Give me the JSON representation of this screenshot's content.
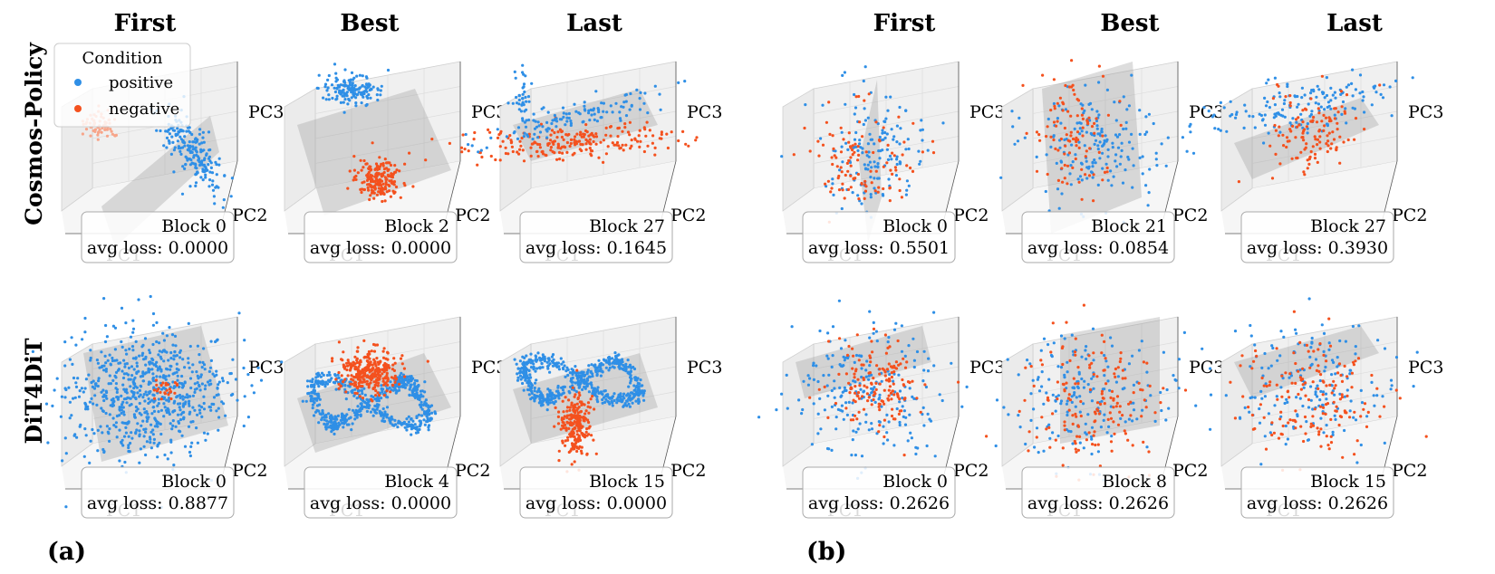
{
  "colors": {
    "positive": "#2f8fe6",
    "negative": "#f4511e",
    "plane": "#9e9e9e",
    "pane": "#f0f0f0"
  },
  "legend": {
    "title": "Condition",
    "items": [
      "positive",
      "negative"
    ],
    "placement": "upper-left of first subplot"
  },
  "column_titles": [
    "First",
    "Best",
    "Last",
    "First",
    "Best",
    "Last"
  ],
  "row_labels": [
    "Cosmos-Policy",
    "DiT4DiT"
  ],
  "panel_labels": [
    "(a)",
    "(b)"
  ],
  "chart_data": {
    "type": "scatter",
    "projection": "3d",
    "axes": {
      "xlabel": "PC1",
      "ylabel": "PC2",
      "zlabel": "PC3"
    },
    "series_names": [
      "positive",
      "negative"
    ],
    "subplots": [
      {
        "panel": "(a)",
        "row": "Cosmos-Policy",
        "column": "First",
        "block_text": "Block 0",
        "loss_text": "avg loss: 0.0000",
        "block": 0,
        "avg_loss": 0.0
      },
      {
        "panel": "(a)",
        "row": "Cosmos-Policy",
        "column": "Best",
        "block_text": "Block 2",
        "loss_text": "avg loss: 0.0000",
        "block": 2,
        "avg_loss": 0.0
      },
      {
        "panel": "(a)",
        "row": "Cosmos-Policy",
        "column": "Last",
        "block_text": "Block 27",
        "loss_text": "avg loss: 0.1645",
        "block": 27,
        "avg_loss": 0.1645
      },
      {
        "panel": "(b)",
        "row": "Cosmos-Policy",
        "column": "First",
        "block_text": "Block 0",
        "loss_text": "avg loss: 0.5501",
        "block": 0,
        "avg_loss": 0.5501
      },
      {
        "panel": "(b)",
        "row": "Cosmos-Policy",
        "column": "Best",
        "block_text": "Block 21",
        "loss_text": "avg loss: 0.0854",
        "block": 21,
        "avg_loss": 0.0854
      },
      {
        "panel": "(b)",
        "row": "Cosmos-Policy",
        "column": "Last",
        "block_text": "Block 27",
        "loss_text": "avg loss: 0.3930",
        "block": 27,
        "avg_loss": 0.393
      },
      {
        "panel": "(a)",
        "row": "DiT4DiT",
        "column": "First",
        "block_text": "Block 0",
        "loss_text": "avg loss: 0.8877",
        "block": 0,
        "avg_loss": 0.8877
      },
      {
        "panel": "(a)",
        "row": "DiT4DiT",
        "column": "Best",
        "block_text": "Block 4",
        "loss_text": "avg loss: 0.0000",
        "block": 4,
        "avg_loss": 0.0
      },
      {
        "panel": "(a)",
        "row": "DiT4DiT",
        "column": "Last",
        "block_text": "Block 15",
        "loss_text": "avg loss: 0.0000",
        "block": 15,
        "avg_loss": 0.0
      },
      {
        "panel": "(b)",
        "row": "DiT4DiT",
        "column": "First",
        "block_text": "Block 0",
        "loss_text": "avg loss: 0.2626",
        "block": 0,
        "avg_loss": 0.2626
      },
      {
        "panel": "(b)",
        "row": "DiT4DiT",
        "column": "Best",
        "block_text": "Block 8",
        "loss_text": "avg loss: 0.2626",
        "block": 8,
        "avg_loss": 0.2626
      },
      {
        "panel": "(b)",
        "row": "DiT4DiT",
        "column": "Last",
        "block_text": "Block 15",
        "loss_text": "avg loss: 0.2626",
        "block": 15,
        "avg_loss": 0.2626
      }
    ]
  }
}
